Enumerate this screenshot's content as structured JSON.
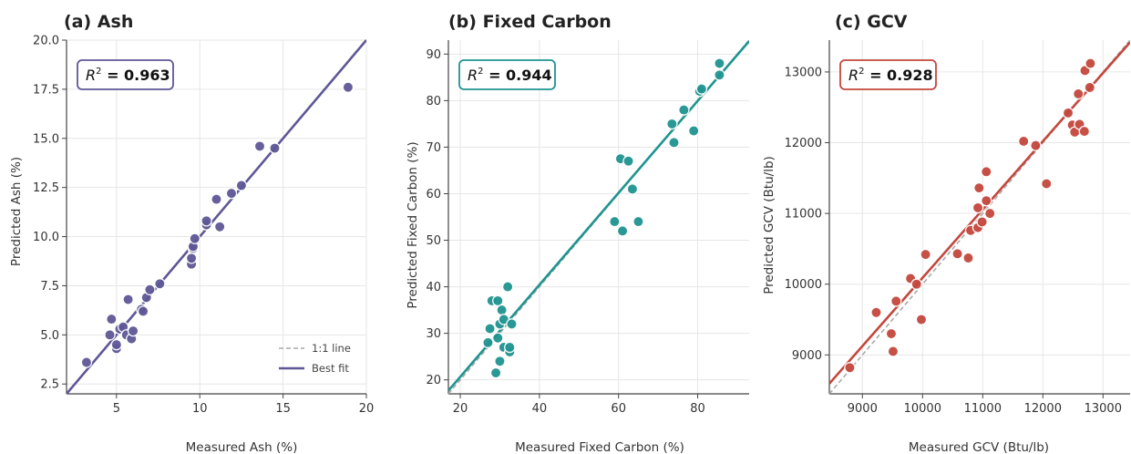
{
  "chart_data": [
    {
      "type": "scatter",
      "panel_title": "(a)  Ash",
      "xlabel": "Measured Ash (%)",
      "ylabel": "Predicted Ash (%)",
      "xlim": [
        2,
        20
      ],
      "ylim": [
        2,
        20
      ],
      "xticks": [
        5,
        10,
        15,
        20
      ],
      "yticks": [
        2.5,
        5.0,
        7.5,
        10.0,
        12.5,
        15.0,
        17.5,
        20.0
      ],
      "ytick_labels": [
        "2.5",
        "5.0",
        "7.5",
        "10.0",
        "12.5",
        "15.0",
        "17.5",
        "20.0"
      ],
      "r2_label": "R",
      "r2_sup": "2",
      "r2_value": " = 0.963",
      "color": "#5e5796",
      "fit": {
        "slope": 1.0,
        "intercept": 0.0
      },
      "legend": {
        "identity": "1:1 line",
        "fit": "Best fit",
        "position": "lower-right"
      },
      "points": [
        [
          3.2,
          3.6
        ],
        [
          4.6,
          5.0
        ],
        [
          4.7,
          5.8
        ],
        [
          5.0,
          4.3
        ],
        [
          5.0,
          4.5
        ],
        [
          5.2,
          5.3
        ],
        [
          5.4,
          5.4
        ],
        [
          5.6,
          5.0
        ],
        [
          5.7,
          6.8
        ],
        [
          5.9,
          4.8
        ],
        [
          6.0,
          5.2
        ],
        [
          6.5,
          6.3
        ],
        [
          6.6,
          6.2
        ],
        [
          6.8,
          6.9
        ],
        [
          7.0,
          7.3
        ],
        [
          7.6,
          7.6
        ],
        [
          9.5,
          8.6
        ],
        [
          9.5,
          8.9
        ],
        [
          9.6,
          9.4
        ],
        [
          9.6,
          9.5
        ],
        [
          9.7,
          9.9
        ],
        [
          10.4,
          10.6
        ],
        [
          10.4,
          10.8
        ],
        [
          11.0,
          11.9
        ],
        [
          11.2,
          10.5
        ],
        [
          11.9,
          12.2
        ],
        [
          12.5,
          12.6
        ],
        [
          13.6,
          14.6
        ],
        [
          14.5,
          14.5
        ],
        [
          18.9,
          17.6
        ]
      ]
    },
    {
      "type": "scatter",
      "panel_title": "(b)  Fixed Carbon",
      "xlabel": "Measured Fixed Carbon (%)",
      "ylabel": "Predicted Fixed Carbon (%)",
      "xlim": [
        17,
        93
      ],
      "ylim": [
        17,
        93
      ],
      "xticks": [
        20,
        40,
        60,
        80
      ],
      "yticks": [
        20,
        30,
        40,
        50,
        60,
        70,
        80,
        90
      ],
      "ytick_labels": [
        "20",
        "30",
        "40",
        "50",
        "60",
        "70",
        "80",
        "90"
      ],
      "r2_label": "R",
      "r2_sup": "2",
      "r2_value": " = 0.944",
      "color": "#1f9490",
      "fit": {
        "slope": 0.988,
        "intercept": 0.9
      },
      "legend": null,
      "points": [
        [
          27,
          28
        ],
        [
          27.5,
          31
        ],
        [
          28,
          37
        ],
        [
          29,
          21.5
        ],
        [
          29.5,
          29
        ],
        [
          29.5,
          37
        ],
        [
          30,
          24
        ],
        [
          30,
          32
        ],
        [
          30.5,
          35
        ],
        [
          31,
          33
        ],
        [
          31,
          27
        ],
        [
          32,
          40
        ],
        [
          32.5,
          26
        ],
        [
          32.5,
          27
        ],
        [
          33,
          32
        ],
        [
          59,
          54
        ],
        [
          60.5,
          67.5
        ],
        [
          61,
          52
        ],
        [
          62.5,
          67
        ],
        [
          63.5,
          61
        ],
        [
          65,
          54
        ],
        [
          73.5,
          75
        ],
        [
          74,
          71
        ],
        [
          76.5,
          78
        ],
        [
          79,
          73.5
        ],
        [
          80.5,
          82
        ],
        [
          81,
          82.5
        ],
        [
          85.5,
          85.5
        ],
        [
          85.5,
          88
        ]
      ]
    },
    {
      "type": "scatter",
      "panel_title": "(c)  GCV",
      "xlabel": "Measured GCV (Btu/lb)",
      "ylabel": "Predicted GCV (Btu/lb)",
      "xlim": [
        8450,
        13450
      ],
      "ylim": [
        8450,
        13450
      ],
      "xticks": [
        9000,
        10000,
        11000,
        12000,
        13000
      ],
      "yticks": [
        9000,
        10000,
        11000,
        12000,
        13000
      ],
      "ytick_labels": [
        "9000",
        "10000",
        "11000",
        "12000",
        "13000"
      ],
      "r2_label": "R",
      "r2_sup": "2",
      "r2_value": " = 0.928",
      "color": "#c4473d",
      "fit": {
        "slope": 0.965,
        "intercept": 440
      },
      "legend": null,
      "points": [
        [
          8790,
          8820
        ],
        [
          9230,
          9600
        ],
        [
          9480,
          9300
        ],
        [
          9510,
          9050
        ],
        [
          9560,
          9760
        ],
        [
          9800,
          10080
        ],
        [
          9900,
          10000
        ],
        [
          9980,
          9500
        ],
        [
          10050,
          10420
        ],
        [
          10580,
          10430
        ],
        [
          10760,
          10370
        ],
        [
          10800,
          10760
        ],
        [
          10920,
          10800
        ],
        [
          10920,
          11080
        ],
        [
          10940,
          11360
        ],
        [
          10990,
          10880
        ],
        [
          11060,
          11180
        ],
        [
          11060,
          11590
        ],
        [
          11120,
          11000
        ],
        [
          11680,
          12020
        ],
        [
          11880,
          11960
        ],
        [
          12060,
          11420
        ],
        [
          12420,
          12420
        ],
        [
          12490,
          12250
        ],
        [
          12530,
          12150
        ],
        [
          12590,
          12690
        ],
        [
          12610,
          12260
        ],
        [
          12690,
          12160
        ],
        [
          12700,
          13020
        ],
        [
          12780,
          12780
        ],
        [
          12790,
          13120
        ]
      ]
    }
  ]
}
